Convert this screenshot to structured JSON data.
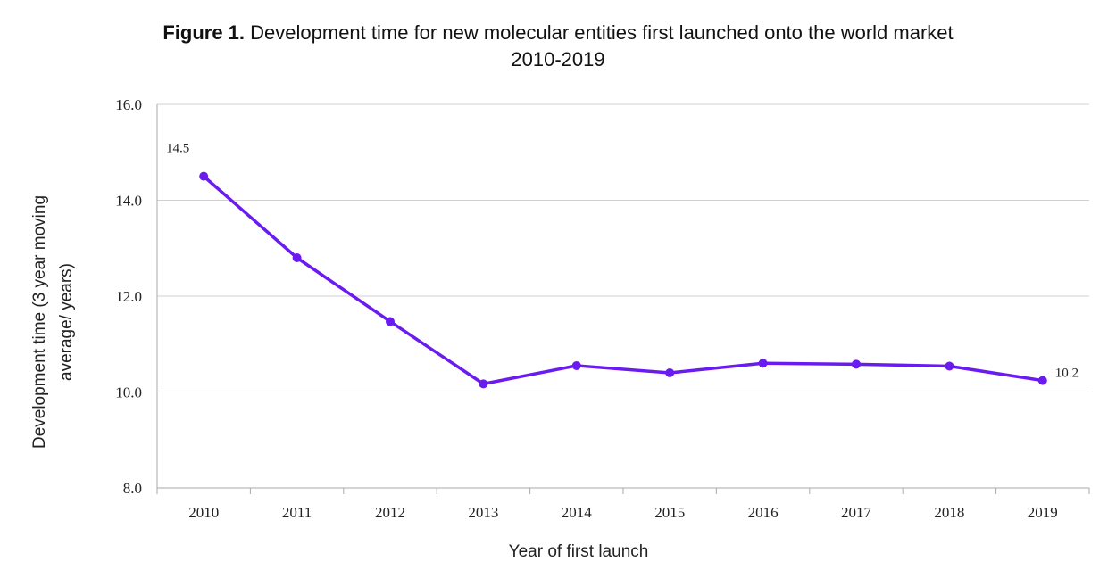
{
  "chart_data": {
    "type": "line",
    "title_prefix": "Figure 1.",
    "title": "Development time for new molecular entities first launched onto the world market",
    "subtitle": "2010-2019",
    "xlabel": "Year of first launch",
    "ylabel_line1": "Development time (3 year moving",
    "ylabel_line2": "average/ years)",
    "categories": [
      "2010",
      "2011",
      "2012",
      "2013",
      "2014",
      "2015",
      "2016",
      "2017",
      "2018",
      "2019"
    ],
    "series": [
      {
        "values": [
          14.5,
          12.8,
          11.47,
          10.17,
          10.55,
          10.4,
          10.6,
          10.58,
          10.54,
          10.24
        ]
      }
    ],
    "yticks": [
      "8.0",
      "10.0",
      "12.0",
      "14.0",
      "16.0"
    ],
    "ylim": [
      8,
      16
    ],
    "grid": true,
    "data_labels": [
      {
        "index": 0,
        "text": "14.5"
      },
      {
        "index": 9,
        "text": "10.2"
      }
    ],
    "line_color": "#6a1bf0",
    "grid_color": "#d0d0d0"
  }
}
